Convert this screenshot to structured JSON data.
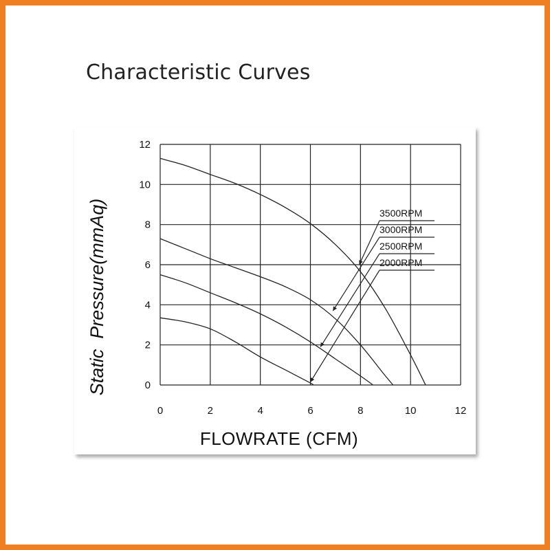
{
  "page": {
    "title": "Characteristic Curves",
    "frame_color": "#f07f22"
  },
  "chart_data": {
    "type": "line",
    "title": "",
    "xlabel": "FLOWRATE (CFM)",
    "ylabel": "Static  Pressure(mmAq)",
    "xlim": [
      0,
      12
    ],
    "ylim": [
      0,
      12
    ],
    "xticks": [
      "0",
      "2",
      "4",
      "6",
      "8",
      "10",
      "12"
    ],
    "yticks": [
      "0",
      "2",
      "4",
      "6",
      "8",
      "10",
      "12"
    ],
    "grid": true,
    "series": [
      {
        "name": "3500RPM",
        "x": [
          0,
          1,
          2,
          3,
          4,
          5,
          6,
          7,
          8,
          9,
          10,
          10.6
        ],
        "y": [
          11.3,
          10.95,
          10.5,
          10.05,
          9.5,
          8.85,
          8.05,
          7.0,
          5.65,
          3.8,
          1.5,
          0
        ]
      },
      {
        "name": "3000RPM",
        "x": [
          0,
          1,
          2,
          3,
          4,
          5,
          6,
          7,
          8,
          8.9,
          9.3
        ],
        "y": [
          7.3,
          6.8,
          6.3,
          5.85,
          5.4,
          4.9,
          4.25,
          3.3,
          2.0,
          0.6,
          0
        ]
      },
      {
        "name": "2500RPM",
        "x": [
          0,
          1,
          2,
          3,
          4,
          5,
          6,
          7,
          8,
          8.5
        ],
        "y": [
          5.5,
          5.1,
          4.6,
          4.1,
          3.55,
          2.9,
          2.15,
          1.3,
          0.45,
          0
        ]
      },
      {
        "name": "2000RPM",
        "x": [
          0,
          1,
          2,
          3,
          4,
          5,
          6,
          6.1
        ],
        "y": [
          3.35,
          3.15,
          2.8,
          2.15,
          1.4,
          0.75,
          0.1,
          0
        ]
      }
    ],
    "legend": {
      "placement": "right, leader lines to curves",
      "entries": [
        "3500RPM",
        "3000RPM",
        "2500RPM",
        "2000RPM"
      ],
      "leader_points": [
        {
          "series": "3500RPM",
          "x": 7.95,
          "y": 6.0
        },
        {
          "series": "3000RPM",
          "x": 6.9,
          "y": 3.7
        },
        {
          "series": "2500RPM",
          "x": 6.4,
          "y": 1.9
        },
        {
          "series": "2000RPM",
          "x": 6.0,
          "y": 0.15
        }
      ]
    }
  }
}
